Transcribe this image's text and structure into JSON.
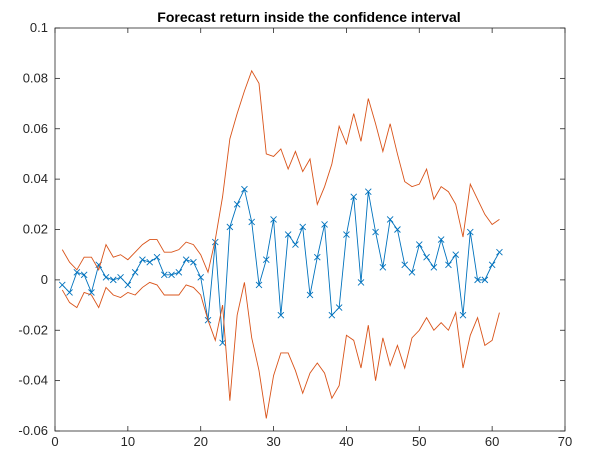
{
  "chart_data": {
    "type": "line",
    "title": "Forecast return inside the confidence interval",
    "xlabel": "",
    "ylabel": "",
    "xlim": [
      0,
      70
    ],
    "ylim": [
      -0.06,
      0.1
    ],
    "xticks": [
      0,
      10,
      20,
      30,
      40,
      50,
      60,
      70
    ],
    "yticks": [
      -0.06,
      -0.04,
      -0.02,
      0,
      0.02,
      0.04,
      0.06,
      0.08,
      0.1
    ],
    "ytick_labels": [
      "-0.06",
      "-0.04",
      "-0.02",
      "0",
      "0.02",
      "0.04",
      "0.06",
      "0.08",
      "0.1"
    ],
    "grid": false,
    "legend": "none",
    "series": [
      {
        "color": "#0072bd",
        "marker": "x",
        "role": "forecast",
        "x": [
          1,
          2,
          3,
          4,
          5,
          6,
          7,
          8,
          9,
          10,
          11,
          12,
          13,
          14,
          15,
          16,
          17,
          18,
          19,
          20,
          21,
          22,
          23,
          24,
          25,
          26,
          27,
          28,
          29,
          30,
          31,
          32,
          33,
          34,
          35,
          36,
          37,
          38,
          39,
          40,
          41,
          42,
          43,
          44,
          45,
          46,
          47,
          48,
          49,
          50,
          51,
          52,
          53,
          54,
          55,
          56,
          57,
          58,
          59,
          60,
          61
        ],
        "values": [
          -0.002,
          -0.005,
          0.003,
          0.002,
          -0.005,
          0.006,
          0.001,
          0.0,
          0.001,
          -0.002,
          0.003,
          0.008,
          0.007,
          0.009,
          0.002,
          0.002,
          0.003,
          0.008,
          0.007,
          0.001,
          -0.016,
          0.015,
          -0.025,
          0.021,
          0.03,
          0.036,
          0.023,
          -0.002,
          0.008,
          0.024,
          -0.014,
          0.018,
          0.014,
          0.021,
          -0.006,
          0.009,
          0.022,
          -0.014,
          -0.011,
          0.018,
          0.033,
          -0.001,
          0.035,
          0.019,
          0.005,
          0.024,
          0.02,
          0.006,
          0.003,
          0.014,
          0.009,
          0.005,
          0.016,
          0.006,
          0.01,
          -0.014,
          0.019,
          0.0,
          0.0,
          0.006,
          0.011
        ]
      },
      {
        "color": "#d95319",
        "marker": "none",
        "role": "upper-bound",
        "x": [
          1,
          2,
          3,
          4,
          5,
          6,
          7,
          8,
          9,
          10,
          11,
          12,
          13,
          14,
          15,
          16,
          17,
          18,
          19,
          20,
          21,
          22,
          23,
          24,
          25,
          26,
          27,
          28,
          29,
          30,
          31,
          32,
          33,
          34,
          35,
          36,
          37,
          38,
          39,
          40,
          41,
          42,
          43,
          44,
          45,
          46,
          47,
          48,
          49,
          50,
          51,
          52,
          53,
          54,
          55,
          56,
          57,
          58,
          59,
          60,
          61
        ],
        "values": [
          0.012,
          0.007,
          0.004,
          0.009,
          0.009,
          0.004,
          0.014,
          0.009,
          0.01,
          0.008,
          0.011,
          0.014,
          0.016,
          0.016,
          0.011,
          0.011,
          0.012,
          0.015,
          0.014,
          0.01,
          0.003,
          0.016,
          0.033,
          0.056,
          0.066,
          0.075,
          0.083,
          0.078,
          0.05,
          0.049,
          0.052,
          0.044,
          0.051,
          0.043,
          0.048,
          0.03,
          0.037,
          0.046,
          0.061,
          0.054,
          0.066,
          0.055,
          0.072,
          0.062,
          0.051,
          0.062,
          0.05,
          0.039,
          0.037,
          0.038,
          0.044,
          0.032,
          0.037,
          0.035,
          0.03,
          0.017,
          0.038,
          0.032,
          0.026,
          0.022,
          0.024
        ]
      },
      {
        "color": "#d95319",
        "marker": "none",
        "role": "lower-bound",
        "x": [
          1,
          2,
          3,
          4,
          5,
          6,
          7,
          8,
          9,
          10,
          11,
          12,
          13,
          14,
          15,
          16,
          17,
          18,
          19,
          20,
          21,
          22,
          23,
          24,
          25,
          26,
          27,
          28,
          29,
          30,
          31,
          32,
          33,
          34,
          35,
          36,
          37,
          38,
          39,
          40,
          41,
          42,
          43,
          44,
          45,
          46,
          47,
          48,
          49,
          50,
          51,
          52,
          53,
          54,
          55,
          56,
          57,
          58,
          59,
          60,
          61
        ],
        "values": [
          -0.004,
          -0.009,
          -0.011,
          -0.005,
          -0.006,
          -0.011,
          -0.003,
          -0.006,
          -0.007,
          -0.005,
          -0.006,
          -0.003,
          -0.001,
          -0.002,
          -0.006,
          -0.006,
          -0.006,
          -0.002,
          -0.003,
          -0.006,
          -0.016,
          -0.024,
          -0.01,
          -0.048,
          -0.014,
          -0.001,
          -0.023,
          -0.036,
          -0.055,
          -0.038,
          -0.029,
          -0.029,
          -0.036,
          -0.045,
          -0.037,
          -0.033,
          -0.037,
          -0.047,
          -0.042,
          -0.022,
          -0.024,
          -0.035,
          -0.018,
          -0.04,
          -0.023,
          -0.034,
          -0.026,
          -0.035,
          -0.023,
          -0.02,
          -0.015,
          -0.02,
          -0.017,
          -0.02,
          -0.013,
          -0.035,
          -0.022,
          -0.015,
          -0.026,
          -0.024,
          -0.013
        ]
      }
    ]
  }
}
